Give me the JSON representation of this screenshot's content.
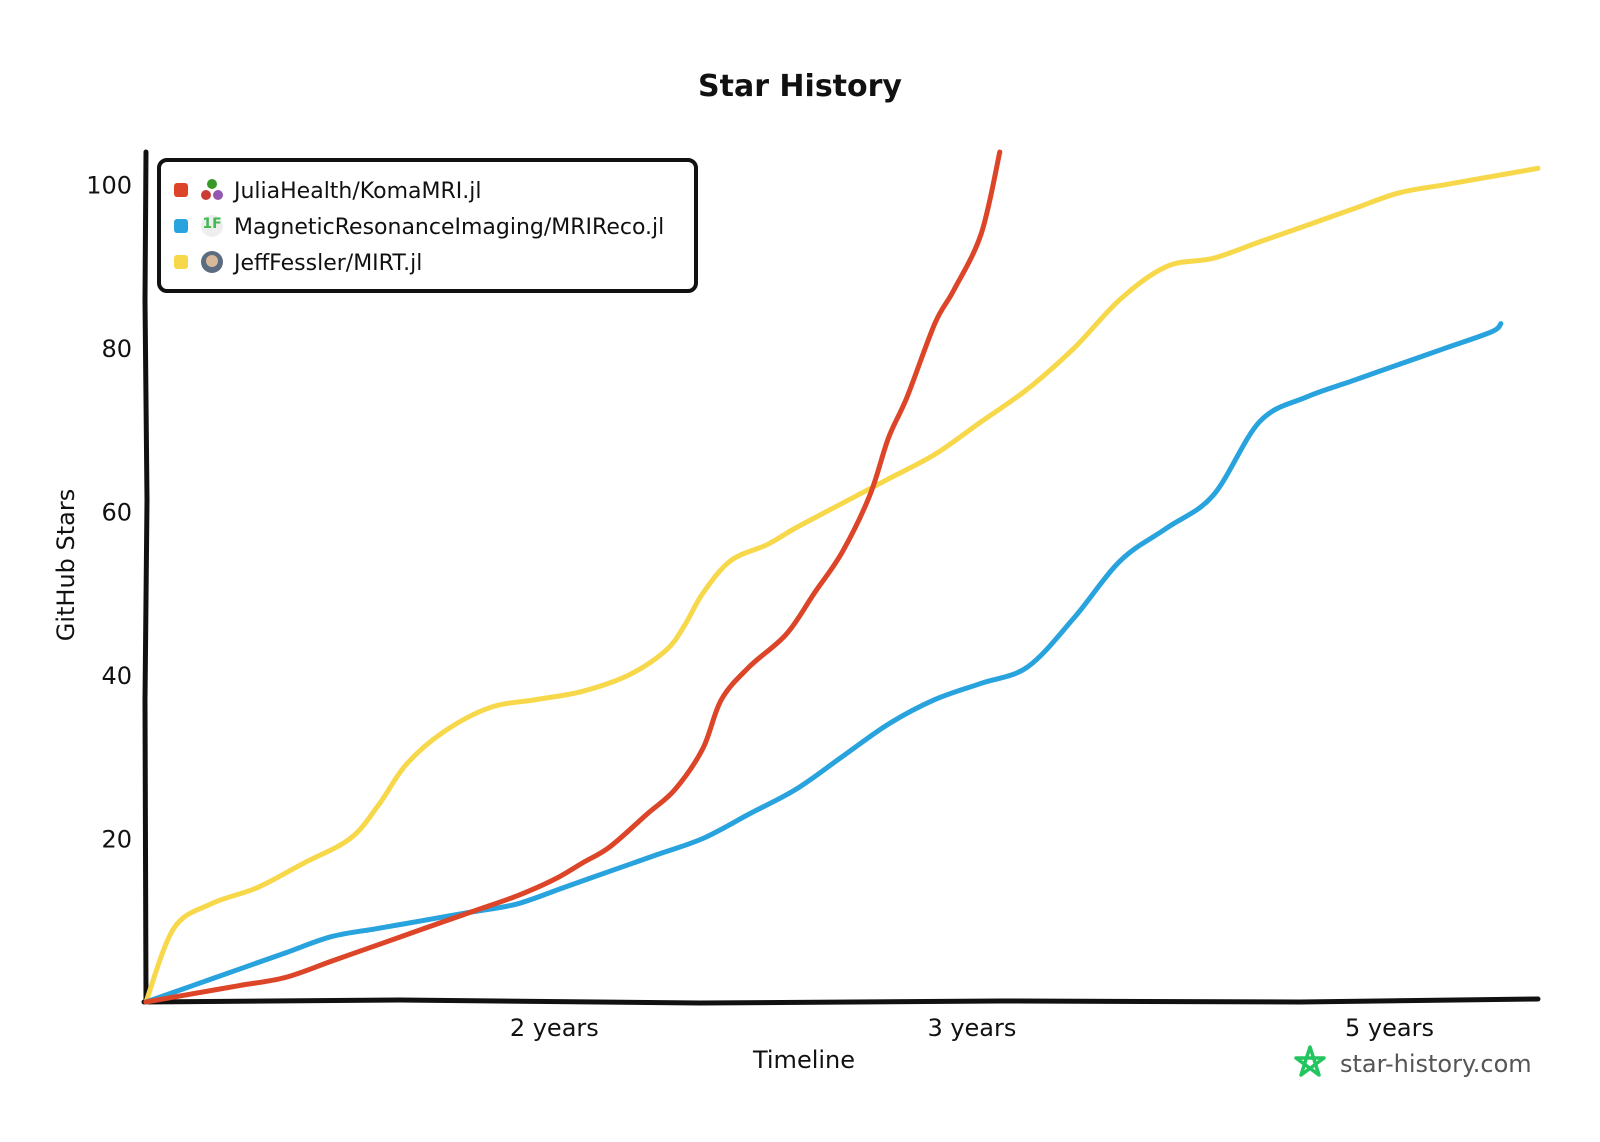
{
  "chart_data": {
    "type": "line",
    "title": "Star History",
    "xlabel": "Timeline",
    "ylabel": "GitHub Stars",
    "x_ticks": [
      "2 years",
      "3 years",
      "5 years"
    ],
    "y_ticks": [
      20,
      40,
      60,
      80,
      100
    ],
    "ylim": [
      0,
      104
    ],
    "legend_position": "top-left",
    "series": [
      {
        "name": "JuliaHealth/KomaMRI.jl",
        "color": "#dd4528",
        "icon": "juliahealth-avatar-icon",
        "points": [
          [
            0,
            0
          ],
          [
            0.5,
            1
          ],
          [
            1,
            2
          ],
          [
            1.5,
            3
          ],
          [
            2,
            5
          ],
          [
            2.5,
            7
          ],
          [
            3,
            9
          ],
          [
            3.5,
            11
          ],
          [
            4,
            13
          ],
          [
            4.4,
            15
          ],
          [
            4.7,
            17
          ],
          [
            5,
            19
          ],
          [
            5.4,
            23
          ],
          [
            5.7,
            26
          ],
          [
            6,
            31
          ],
          [
            6.2,
            37
          ],
          [
            6.5,
            41
          ],
          [
            6.9,
            45
          ],
          [
            7.2,
            50
          ],
          [
            7.5,
            55
          ],
          [
            7.8,
            62
          ],
          [
            8,
            69
          ],
          [
            8.2,
            74
          ],
          [
            8.5,
            83
          ],
          [
            8.7,
            87
          ],
          [
            9,
            94
          ],
          [
            9.2,
            104
          ]
        ]
      },
      {
        "name": "MagneticResonanceImaging/MRIReco.jl",
        "color": "#28a3dd",
        "icon": "mrireco-avatar-icon",
        "points": [
          [
            0,
            0
          ],
          [
            0.5,
            2
          ],
          [
            1,
            4
          ],
          [
            1.5,
            6
          ],
          [
            2,
            8
          ],
          [
            2.5,
            9
          ],
          [
            3,
            10
          ],
          [
            3.5,
            11
          ],
          [
            4,
            12
          ],
          [
            4.5,
            14
          ],
          [
            5,
            16
          ],
          [
            5.5,
            18
          ],
          [
            6,
            20
          ],
          [
            6.5,
            23
          ],
          [
            7,
            26
          ],
          [
            7.5,
            30
          ],
          [
            8,
            34
          ],
          [
            8.5,
            37
          ],
          [
            9,
            39
          ],
          [
            9.5,
            41
          ],
          [
            10,
            47
          ],
          [
            10.5,
            54
          ],
          [
            11,
            58
          ],
          [
            11.5,
            62
          ],
          [
            12,
            71
          ],
          [
            12.5,
            74
          ],
          [
            13,
            76
          ],
          [
            13.5,
            78
          ],
          [
            14,
            80
          ],
          [
            14.5,
            82
          ],
          [
            14.6,
            83
          ]
        ]
      },
      {
        "name": "JeffFessler/MIRT.jl",
        "color": "#f7d84a",
        "icon": "jefffessler-avatar-icon",
        "points": [
          [
            0,
            0
          ],
          [
            0.3,
            9
          ],
          [
            0.7,
            12
          ],
          [
            1.2,
            14
          ],
          [
            1.7,
            17
          ],
          [
            2.2,
            20
          ],
          [
            2.5,
            24
          ],
          [
            2.8,
            29
          ],
          [
            3.2,
            33
          ],
          [
            3.7,
            36
          ],
          [
            4.2,
            37
          ],
          [
            4.7,
            38
          ],
          [
            5.2,
            40
          ],
          [
            5.6,
            43
          ],
          [
            5.8,
            46
          ],
          [
            6,
            50
          ],
          [
            6.3,
            54
          ],
          [
            6.7,
            56
          ],
          [
            7,
            58
          ],
          [
            7.5,
            61
          ],
          [
            8,
            64
          ],
          [
            8.5,
            67
          ],
          [
            9,
            71
          ],
          [
            9.5,
            75
          ],
          [
            10,
            80
          ],
          [
            10.5,
            86
          ],
          [
            11,
            90
          ],
          [
            11.5,
            91
          ],
          [
            12,
            93
          ],
          [
            12.5,
            95
          ],
          [
            13,
            97
          ],
          [
            13.5,
            99
          ],
          [
            14,
            100
          ],
          [
            14.5,
            101
          ],
          [
            15,
            102
          ]
        ]
      }
    ],
    "x_tick_positions": [
      4.4,
      8.9,
      13.4
    ],
    "xlim": [
      0,
      15
    ]
  },
  "watermark": {
    "text": "star-history.com",
    "color": "#22c55e",
    "icon": "star-history-logo-icon"
  }
}
